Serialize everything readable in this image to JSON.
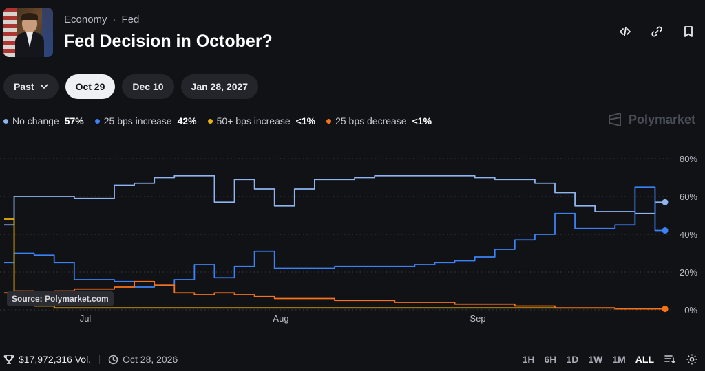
{
  "header": {
    "breadcrumbs": [
      "Economy",
      "Fed"
    ],
    "breadcrumb_sep": "·",
    "title": "Fed Decision in October?"
  },
  "actions": {
    "embed_icon": "code-icon",
    "link_icon": "link-icon",
    "bookmark_icon": "bookmark-icon"
  },
  "tabs": [
    {
      "label": "Past",
      "dropdown": true,
      "active": false
    },
    {
      "label": "Oct 29",
      "active": true
    },
    {
      "label": "Dec 10",
      "active": false
    },
    {
      "label": "Jan 28, 2027",
      "active": false
    }
  ],
  "legend": [
    {
      "name": "No change",
      "pct": "57%",
      "color": "#8fb4f0"
    },
    {
      "name": "25 bps increase",
      "pct": "42%",
      "color": "#3b82f6"
    },
    {
      "name": "50+ bps increase",
      "pct": "<1%",
      "color": "#eab308"
    },
    {
      "name": "25 bps decrease",
      "pct": "<1%",
      "color": "#f97316"
    }
  ],
  "brand": "Polymarket",
  "source": "Source: Polymarket.com",
  "footer": {
    "volume": "$17,972,316 Vol.",
    "date": "Oct 28, 2026",
    "ranges": [
      "1H",
      "6H",
      "1D",
      "1W",
      "1M",
      "ALL"
    ],
    "active_range": "ALL"
  },
  "chart_data": {
    "type": "line",
    "x_ticks": [
      "Jul",
      "Aug",
      "Sep"
    ],
    "y_ticks": [
      "0%",
      "20%",
      "40%",
      "60%",
      "80%"
    ],
    "ylim": [
      0,
      80
    ],
    "grid": "dotted horizontal",
    "series": [
      {
        "name": "No change",
        "color": "#8fb4f0",
        "values": [
          45,
          60,
          60,
          60,
          59,
          59,
          66,
          67,
          70,
          71,
          71,
          57,
          69,
          64,
          55,
          64,
          69,
          69,
          70,
          71,
          71,
          71,
          71,
          71,
          70,
          69,
          69,
          67,
          62,
          55,
          52,
          52,
          51,
          57
        ]
      },
      {
        "name": "25 bps increase",
        "color": "#3b82f6",
        "values": [
          25,
          30,
          29,
          25,
          16,
          16,
          15,
          12,
          13,
          16,
          24,
          17,
          23,
          31,
          22,
          22,
          22,
          23,
          23,
          23,
          23,
          24,
          25,
          26,
          28,
          32,
          37,
          40,
          51,
          43,
          43,
          45,
          65,
          42
        ]
      },
      {
        "name": "50+ bps increase",
        "color": "#eab308",
        "values": [
          48,
          6,
          2,
          1,
          1,
          1,
          1,
          1,
          1,
          1,
          1,
          1,
          1,
          1,
          1,
          1,
          1,
          1,
          1,
          1,
          1,
          1,
          1,
          1,
          1,
          1,
          1,
          1,
          1,
          1,
          1,
          0.5,
          0.5,
          0.5
        ]
      },
      {
        "name": "25 bps decrease",
        "color": "#f97316",
        "values": [
          9,
          10,
          9,
          10,
          11,
          11,
          12,
          15,
          13,
          9,
          8,
          9,
          8,
          7,
          6,
          6,
          6,
          5,
          5,
          5,
          4,
          4,
          4,
          3,
          3,
          3,
          2,
          2,
          1,
          1,
          1,
          0.5,
          0.5,
          0.5
        ]
      }
    ]
  }
}
